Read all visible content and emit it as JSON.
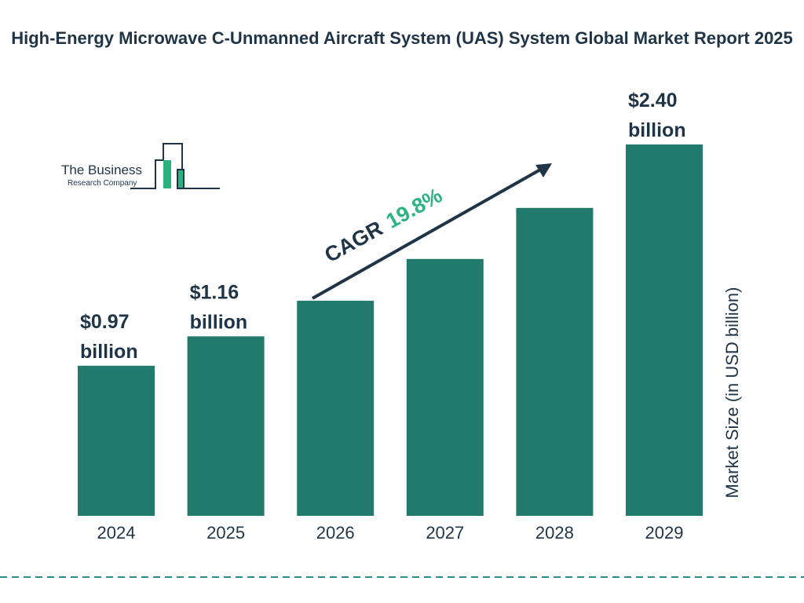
{
  "chart_data": {
    "type": "bar",
    "title": "High-Energy Microwave C-Unmanned Aircraft System (UAS) System Global Market Report 2025",
    "categories": [
      "2024",
      "2025",
      "2026",
      "2027",
      "2028",
      "2029"
    ],
    "values": [
      0.97,
      1.16,
      1.39,
      1.66,
      1.99,
      2.4
    ],
    "value_labels": [
      "$0.97 billion",
      "$1.16 billion",
      null,
      null,
      null,
      "$2.40 billion"
    ],
    "color": "#217a6b",
    "y_axis_label": "Market Size (in USD billion)",
    "annotation": {
      "label": "CAGR",
      "value": "19.8%"
    },
    "logo": {
      "line1": "The Business",
      "line2": "Research Company"
    }
  }
}
